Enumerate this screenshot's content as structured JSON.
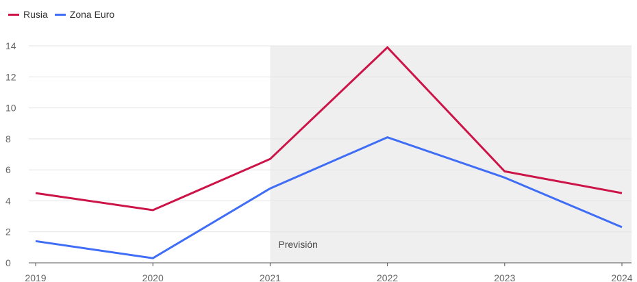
{
  "chart_data": {
    "type": "line",
    "x": [
      "2019",
      "2020",
      "2021",
      "2022",
      "2023",
      "2024"
    ],
    "series": [
      {
        "name": "Rusia",
        "color": "#cc1448",
        "values": [
          4.5,
          3.4,
          6.7,
          13.9,
          5.9,
          4.5
        ]
      },
      {
        "name": "Zona Euro",
        "color": "#3f6df5",
        "values": [
          1.4,
          0.3,
          4.8,
          8.1,
          5.5,
          2.3
        ]
      }
    ],
    "yticks": [
      0,
      2,
      4,
      6,
      8,
      10,
      12,
      14
    ],
    "ylim": [
      0,
      14
    ],
    "grid": true,
    "legend": "top-left",
    "shaded_region": {
      "from": "2021",
      "to": "2024",
      "label": "Previsión",
      "color": "#efefef"
    }
  }
}
